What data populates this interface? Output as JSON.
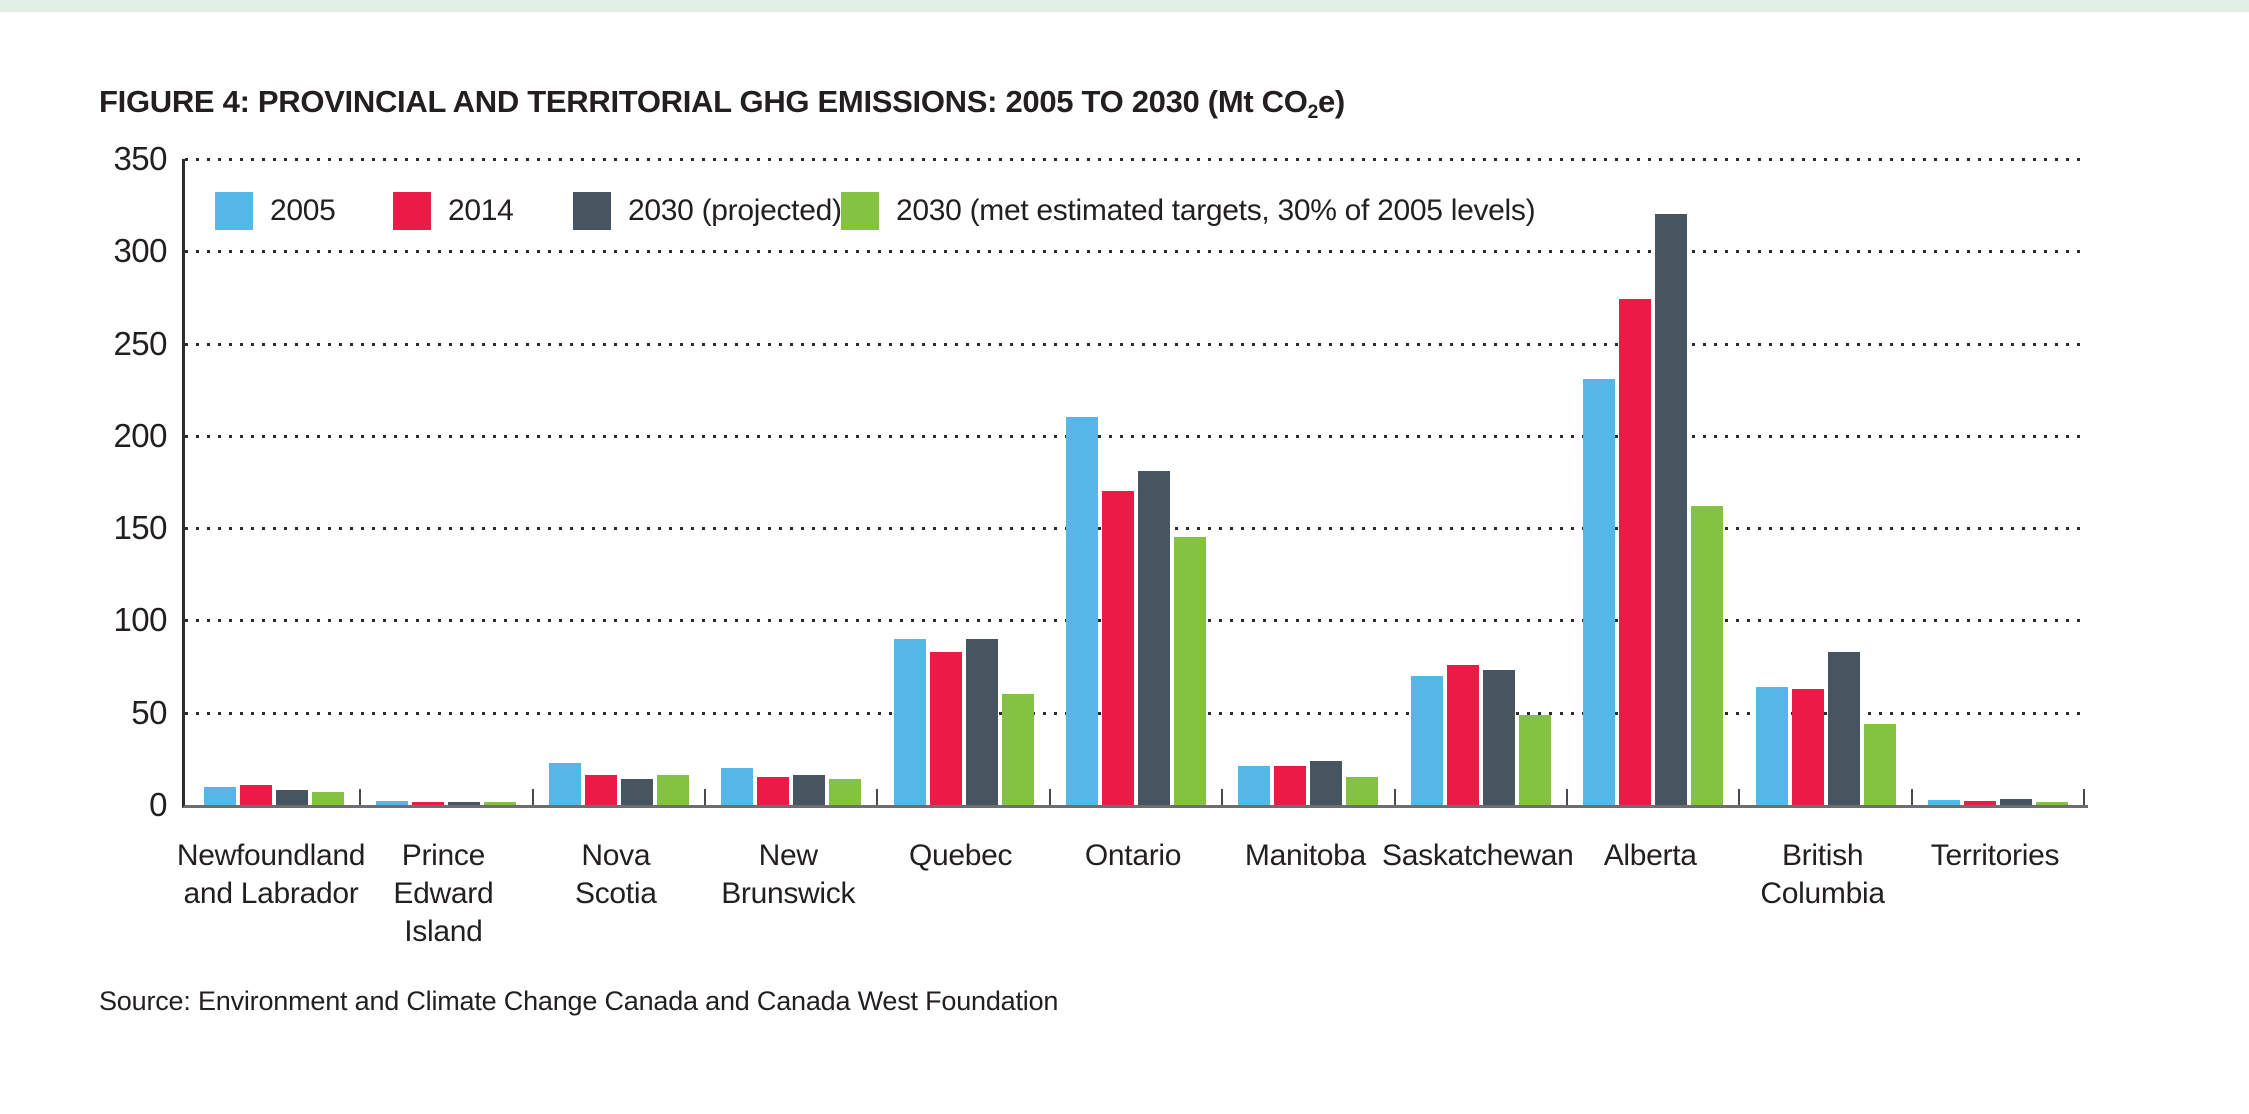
{
  "figure": {
    "title_prefix": "FIGURE 4: PROVINCIAL AND TERRITORIAL GHG EMISSIONS: 2005 TO 2030 (Mt CO",
    "title_sub": "2",
    "title_suffix": "e)",
    "source": "Source: Environment and Climate Change Canada and Canada West Foundation"
  },
  "colors": {
    "series_2005": "#54b7e8",
    "series_2014": "#ea1c46",
    "series_2030_projected": "#475561",
    "series_2030_target": "#84c342",
    "top_strip": "#e2efe6",
    "text": "#231f20",
    "grid_dots": "#2b2b2b"
  },
  "chart_data": {
    "type": "bar",
    "title": "FIGURE 4: PROVINCIAL AND TERRITORIAL GHG EMISSIONS: 2005 TO 2030 (Mt CO2e)",
    "categories": [
      "Newfoundland and Labrador",
      "Prince Edward Island",
      "Nova Scotia",
      "New Brunswick",
      "Quebec",
      "Ontario",
      "Manitoba",
      "Saskatchewan",
      "Alberta",
      "British Columbia",
      "Territories"
    ],
    "category_label_lines": [
      [
        "Newfoundland",
        "and Labrador"
      ],
      [
        "Prince",
        "Edward",
        "Island"
      ],
      [
        "Nova",
        "Scotia"
      ],
      [
        "New",
        "Brunswick"
      ],
      [
        "Quebec"
      ],
      [
        "Ontario"
      ],
      [
        "Manitoba"
      ],
      [
        "Saskatchewan"
      ],
      [
        "Alberta"
      ],
      [
        "British",
        "Columbia"
      ],
      [
        "Territories"
      ]
    ],
    "series": [
      {
        "name": "2005",
        "color": "#54b7e8",
        "values": [
          10,
          2,
          23,
          20,
          90,
          210,
          21,
          70,
          231,
          64,
          2.5
        ]
      },
      {
        "name": "2014",
        "color": "#ea1c46",
        "values": [
          11,
          1.8,
          16.5,
          15,
          83,
          170,
          21,
          76,
          274,
          63,
          2.2
        ]
      },
      {
        "name": "2030 (projected)",
        "color": "#475561",
        "values": [
          8,
          1.8,
          14,
          16,
          90,
          181,
          24,
          73,
          320,
          83,
          3.2
        ]
      },
      {
        "name": "2030 (met estimated targets, 30% of 2005 levels)",
        "color": "#84c342",
        "values": [
          7,
          1.4,
          16,
          14,
          60,
          145,
          15,
          49,
          162,
          44,
          1.5
        ]
      }
    ],
    "xlabel": "",
    "ylabel": "",
    "ylim": [
      0,
      350
    ],
    "yticks": [
      0,
      50,
      100,
      150,
      200,
      250,
      300,
      350
    ],
    "grid": "dotted-horizontal",
    "legend_position": "top-left-inside"
  }
}
